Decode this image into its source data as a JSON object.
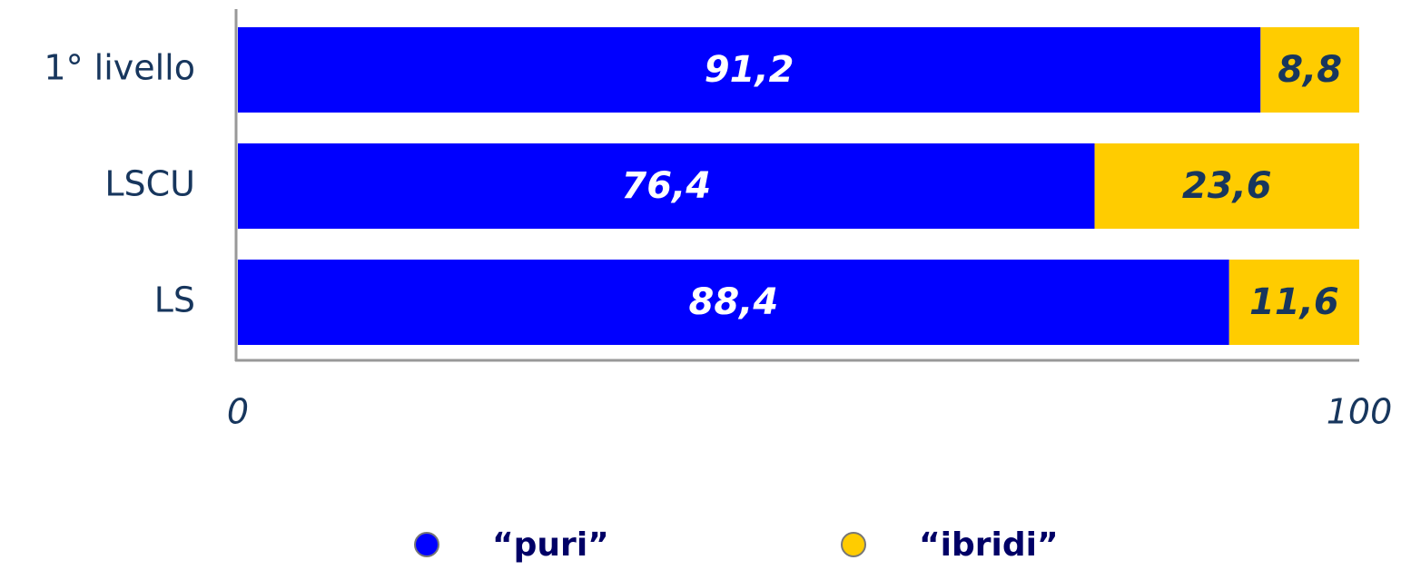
{
  "chart_data": {
    "type": "stacked_barh",
    "categories": [
      "1° livello",
      "LSCU",
      "LS"
    ],
    "series": [
      {
        "name": "“puri”",
        "color": "#0000ff",
        "label_color": "#ffffff",
        "values": [
          91.2,
          76.4,
          88.4
        ],
        "value_labels": [
          "91,2",
          "76,4",
          "88,4"
        ]
      },
      {
        "name": "“ibridi”",
        "color": "#ffcc00",
        "label_color": "#17365d",
        "values": [
          8.8,
          23.6,
          11.6
        ],
        "value_labels": [
          "8,8",
          "23,6",
          "11,6"
        ]
      }
    ],
    "xlim": [
      0,
      100
    ],
    "xticks": [
      0,
      100
    ],
    "legend": "bottom"
  }
}
